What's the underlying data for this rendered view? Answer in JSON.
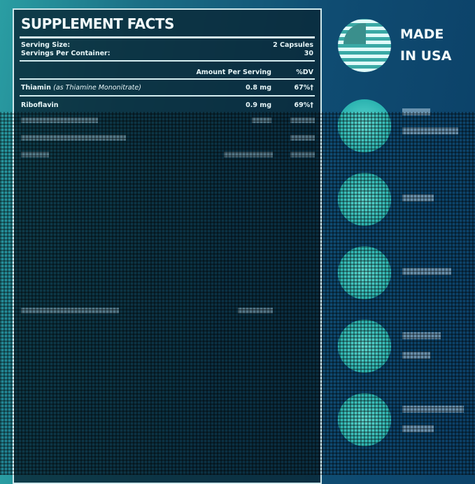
{
  "facts": {
    "title": "SUPPLEMENT FACTS",
    "serving_size_label": "Serving Size:",
    "serving_size_value": "2 Capsules",
    "servings_label": "Servings Per Container:",
    "servings_value": "30",
    "col_amount": "Amount Per Serving",
    "col_dv": "%DV",
    "rows": [
      {
        "name": "Thiamin",
        "detail": "(as Thiamine Mononitrate)",
        "amount": "0.8 mg",
        "dv": "67%†"
      },
      {
        "name": "Riboflavin",
        "detail": "",
        "amount": "0.9 mg",
        "dv": "69%†"
      }
    ]
  },
  "badges": [
    {
      "icon": "us-flag-icon",
      "line1": "MADE",
      "line2": "IN USA"
    }
  ],
  "colors": {
    "accent": "#2bb3b0",
    "background": "#0f4c72"
  }
}
